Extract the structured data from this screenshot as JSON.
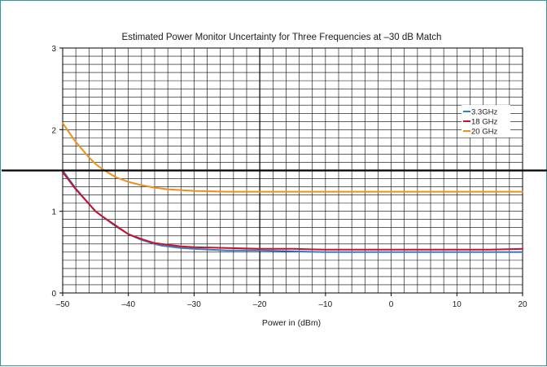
{
  "chart_data": {
    "type": "line",
    "title": "Estimated Power Monitor Uncertainty for Three Frequencies at –30 dB Match",
    "xlabel": "Power in (dBm)",
    "ylabel": "",
    "xlim": [
      -50,
      20
    ],
    "ylim": [
      0,
      3
    ],
    "xticks": [
      -50,
      -40,
      -30,
      -20,
      -10,
      0,
      10,
      20
    ],
    "xtick_labels": [
      "–50",
      "–40",
      "–30",
      "–20",
      "–10",
      "0",
      "10",
      "20"
    ],
    "yticks": [
      0,
      1,
      2,
      3
    ],
    "ytick_labels": [
      "0",
      "1",
      "2",
      "3"
    ],
    "grid": true,
    "legend_position": "right",
    "reference_line_y": 1.5,
    "x": [
      -50,
      -48,
      -46,
      -45,
      -44,
      -42,
      -40,
      -38,
      -36,
      -35,
      -34,
      -32,
      -30,
      -25,
      -20,
      -15,
      -10,
      -5,
      0,
      5,
      10,
      15,
      20
    ],
    "series": [
      {
        "name": "3.3GHz",
        "color": "#2f7fc1",
        "values": [
          1.5,
          1.28,
          1.09,
          1.0,
          0.94,
          0.82,
          0.72,
          0.65,
          0.6,
          0.58,
          0.57,
          0.55,
          0.54,
          0.52,
          0.52,
          0.51,
          0.5,
          0.5,
          0.5,
          0.5,
          0.5,
          0.5,
          0.5
        ]
      },
      {
        "name": "18 GHz",
        "color": "#c8102e",
        "values": [
          1.48,
          1.27,
          1.09,
          1.0,
          0.94,
          0.83,
          0.72,
          0.66,
          0.61,
          0.6,
          0.59,
          0.57,
          0.56,
          0.55,
          0.54,
          0.54,
          0.53,
          0.53,
          0.53,
          0.53,
          0.53,
          0.53,
          0.54
        ]
      },
      {
        "name": "20 GHz",
        "color": "#f28c1c",
        "values": [
          2.08,
          1.85,
          1.66,
          1.58,
          1.52,
          1.42,
          1.36,
          1.32,
          1.29,
          1.28,
          1.27,
          1.26,
          1.25,
          1.24,
          1.24,
          1.24,
          1.24,
          1.24,
          1.24,
          1.24,
          1.24,
          1.24,
          1.24
        ]
      }
    ]
  }
}
